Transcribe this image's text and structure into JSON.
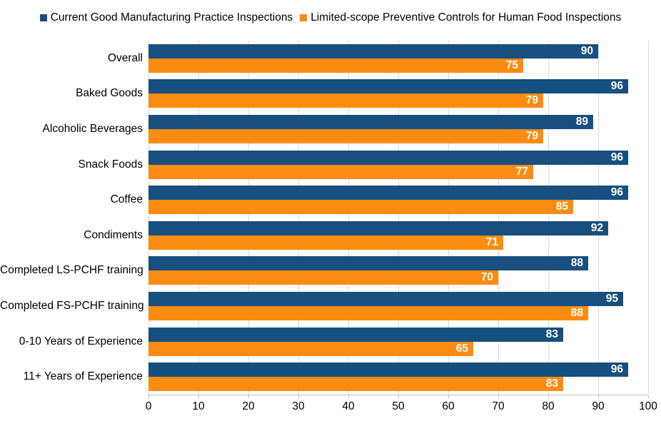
{
  "legend": {
    "position": "top",
    "items": [
      {
        "label": "Current Good Manufacturing Practice Inspections",
        "color": "#174F7E"
      },
      {
        "label": "Limited-scope Preventive Controls for Human Food Inspections",
        "color": "#FB8C11"
      }
    ]
  },
  "chart_data": {
    "type": "bar",
    "orientation": "horizontal",
    "title": "",
    "xlabel": "",
    "ylabel": "",
    "categories": [
      "Overall",
      "Baked Goods",
      "Alcoholic Beverages",
      "Snack Foods",
      "Coffee",
      "Condiments",
      "Completed LS-PCHF training",
      "Completed FS-PCHF training",
      "0-10 Years of Experience",
      "11+ Years of Experience"
    ],
    "series": [
      {
        "name": "Current Good Manufacturing Practice Inspections",
        "color": "#174F7E",
        "values": [
          90,
          96,
          89,
          96,
          96,
          92,
          88,
          95,
          83,
          96
        ]
      },
      {
        "name": "Limited-scope Preventive Controls for Human Food Inspections",
        "color": "#FB8C11",
        "values": [
          75,
          79,
          79,
          77,
          85,
          71,
          70,
          88,
          65,
          83
        ]
      }
    ],
    "xlim": [
      0,
      100
    ],
    "x_ticks": [
      0,
      10,
      20,
      30,
      40,
      50,
      60,
      70,
      80,
      90,
      100
    ],
    "grid": true,
    "gridline_color": "#D9D9D9",
    "axis_line_color": "#BFBFBF",
    "data_labels": true,
    "data_label_color": "#FFFFFF",
    "legend_position": "top"
  }
}
